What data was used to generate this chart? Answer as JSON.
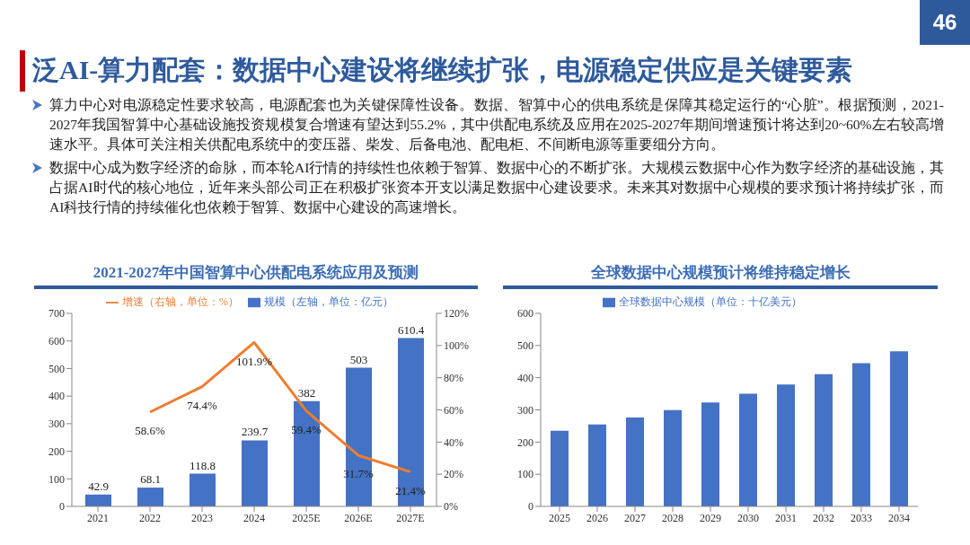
{
  "chart_data": [
    {
      "type": "other",
      "title": "泛AI-算力配套：数据中心建设将继续扩张，电源稳定供应是关键要素",
      "annotations": [
        "算力中心对电源稳定性要求较高，电源配套也为关键保障性设备。数据、智算中心的供电系统是保障其稳定运行的“心脏”。根据预测，2021-2027年我国智算中心基础设施投资规模复合增速有望达到55.2%，其中供配电系统及应用在2025-2027年期间增速预计将达到20~60%左右较高增速水平。具体可关注相关供配电系统中的变压器、柴发、后备电池、配电柜、不间断电源等重要细分方向。",
        "数据中心成为数字经济的命脉，而本轮AI行情的持续性也依赖于智算、数据中心的不断扩张。大规模云数据中心作为数字经济的基础设施，其占据AI时代的核心地位，近年来头部公司正在积极扩张资本开支以满足数据中心建设要求。未来其对数据中心规模的要求预计将持续扩张，而AI科技行情的持续催化也依赖于智算、数据中心建设的高速增长。",
        "46"
      ]
    },
    {
      "type": "bar",
      "title": "2021-2027年中国智算中心供配电系统应用及预测",
      "categories": [
        "2021",
        "2022",
        "2023",
        "2024",
        "2025E",
        "2026E",
        "2027E"
      ],
      "series": [
        {
          "name": "规模（左轴，单位：亿元）",
          "color": "#4472c4",
          "values": [
            42.9,
            68.1,
            118.8,
            239.7,
            382,
            503,
            610.4
          ],
          "value_labels": [
            "42.9",
            "68.1",
            "118.8",
            "239.7",
            "382",
            "503",
            "610.4"
          ]
        },
        {
          "name": "增速（右轴，单位：%）",
          "type": "line",
          "axis": "y2",
          "color": "#ed7d31",
          "values": [
            null,
            58.6,
            74.4,
            101.9,
            59.4,
            31.7,
            21.4
          ],
          "value_labels": [
            null,
            "58.6%",
            "74.4%",
            "101.9%",
            "59.4%",
            "31.7%",
            "21.4%"
          ]
        }
      ],
      "ylim": [
        0,
        700
      ],
      "yticks": [
        0,
        100,
        200,
        300,
        400,
        500,
        600,
        700
      ],
      "y2lim": [
        0,
        120
      ],
      "y2ticks": [
        {
          "value": 0,
          "label": "0%"
        },
        {
          "value": 20,
          "label": "20%"
        },
        {
          "value": 40,
          "label": "40%"
        },
        {
          "value": 60,
          "label": "60%"
        },
        {
          "value": 80,
          "label": "80%"
        },
        {
          "value": 100,
          "label": "100%"
        },
        {
          "value": 120,
          "label": "120%"
        }
      ],
      "legend": "top"
    },
    {
      "type": "bar",
      "title": "全球数据中心规模预计将维持稳定增长",
      "categories": [
        "2025",
        "2026",
        "2027",
        "2028",
        "2029",
        "2030",
        "2031",
        "2032",
        "2033",
        "2034"
      ],
      "series": [
        {
          "name": "全球数据中心规模（单位：十亿美元）",
          "color": "#4472c4",
          "values": [
            235,
            255,
            276,
            299,
            323,
            350,
            379,
            411,
            445,
            482
          ]
        }
      ],
      "ylim": [
        0,
        600
      ],
      "yticks": [
        0,
        100,
        200,
        300,
        400,
        500,
        600
      ],
      "legend": "top"
    }
  ]
}
